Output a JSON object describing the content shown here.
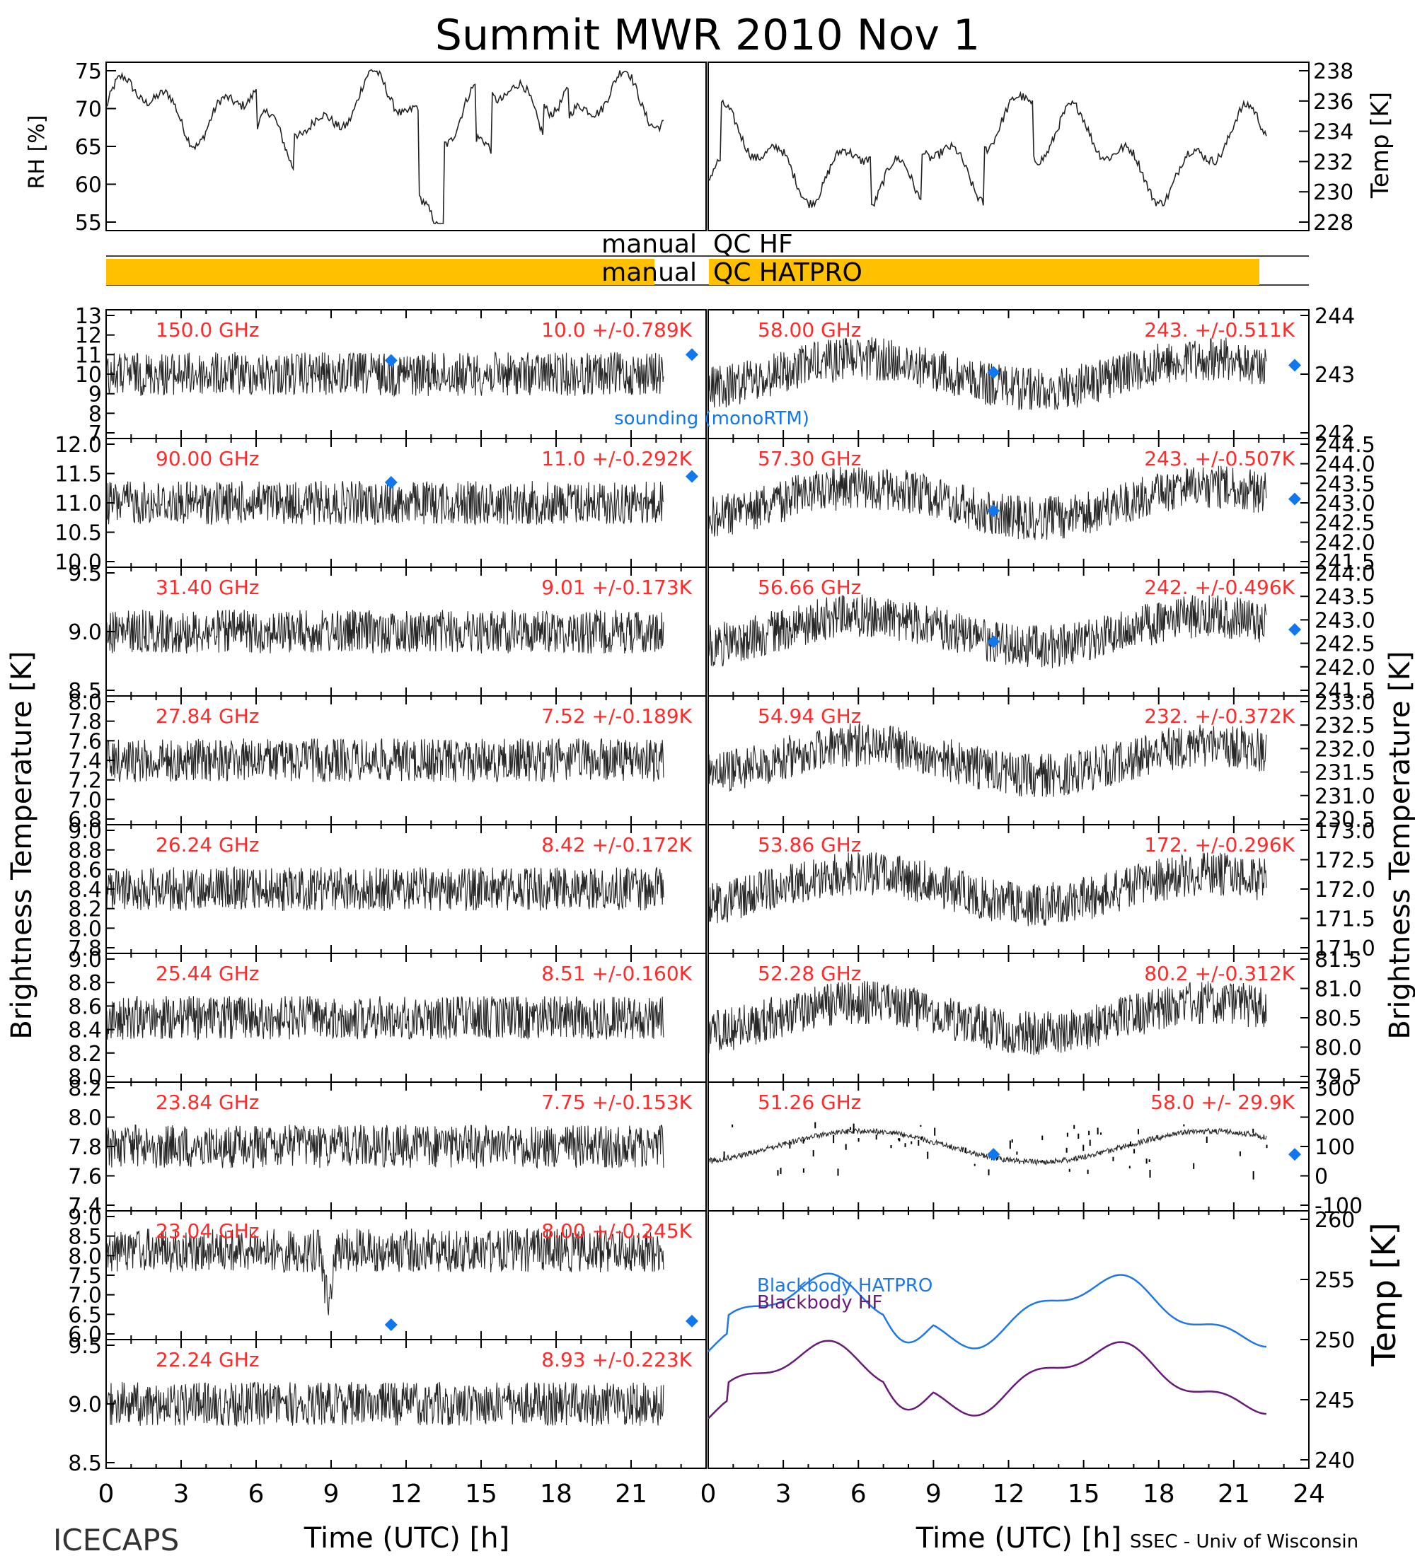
{
  "title": "Summit MWR 2010 Nov  1",
  "footer": {
    "left": "ICECAPS",
    "right": "SSEC - Univ of Wisconsin"
  },
  "colors": {
    "qc_bar": "#FFC000",
    "value_text": "#FF2A2A",
    "sounding": "#1177EE",
    "hatpro": "#1E78E6",
    "hf": "#6A1B7A",
    "trace": "#000000"
  },
  "axes": {
    "x_label": "Time (UTC) [h]",
    "x_ticks": [
      "0",
      "3",
      "6",
      "9",
      "12",
      "15",
      "18",
      "21"
    ],
    "x_ticks_right": [
      "0",
      "3",
      "6",
      "9",
      "12",
      "15",
      "18",
      "21",
      "24"
    ],
    "left_ylabel": "Brightness Temperature [K]",
    "right_ylabel": "Brightness Temperature [K]"
  },
  "met": {
    "rh_label": "RH [%]",
    "temp_label": "Temp [K]",
    "rh_ticks": [
      "75",
      "70",
      "65",
      "60",
      "55"
    ],
    "temp_ticks": [
      "238",
      "236",
      "234",
      "232",
      "230",
      "228"
    ]
  },
  "qc": {
    "hf_label_left": "manual",
    "hf_label_right": "QC HF",
    "hatpro_label_left": "manual",
    "hatpro_label_right": "QC HATPRO"
  },
  "sounding_label": "sounding (monoRTM)",
  "legend": {
    "hatpro": "Blackbody HATPRO",
    "hf": "Blackbody HF",
    "temp_axis_label": "Temp [K]",
    "ticks": [
      "260",
      "255",
      "250",
      "245",
      "240"
    ]
  },
  "chart_data": [
    {
      "type": "line",
      "panel": "left",
      "name": "150.0 GHz",
      "stat": "10.0 +/-0.789K",
      "yticks": [
        "13",
        "12",
        "11",
        "10",
        "9",
        "8",
        "7"
      ],
      "ylim": [
        7,
        13
      ],
      "sounding": [
        [
          11.4,
          10.7
        ],
        [
          23.5,
          11.0
        ]
      ]
    },
    {
      "type": "line",
      "panel": "left",
      "name": "90.00 GHz",
      "stat": "11.0 +/-0.292K",
      "yticks": [
        "12.0",
        "11.5",
        "11.0",
        "10.5",
        "10.0"
      ],
      "ylim": [
        10.0,
        12.0
      ],
      "sounding": [
        [
          11.4,
          11.35
        ],
        [
          23.5,
          11.45
        ]
      ]
    },
    {
      "type": "line",
      "panel": "left",
      "name": "31.40 GHz",
      "stat": "9.01 +/-0.173K",
      "yticks": [
        "9.5",
        "9.0",
        "8.5"
      ],
      "ylim": [
        8.4,
        9.7
      ],
      "sounding": []
    },
    {
      "type": "line",
      "panel": "left",
      "name": "27.84 GHz",
      "stat": "7.52 +/-0.189K",
      "yticks": [
        "8.0",
        "7.8",
        "7.6",
        "7.4",
        "7.2",
        "7.0",
        "6.8"
      ],
      "ylim": [
        6.8,
        8.1
      ],
      "sounding": []
    },
    {
      "type": "line",
      "panel": "left",
      "name": "26.24 GHz",
      "stat": "8.42 +/-0.172K",
      "yticks": [
        "9.0",
        "8.8",
        "8.6",
        "8.4",
        "8.2",
        "8.0",
        "7.8"
      ],
      "ylim": [
        7.8,
        9.0
      ],
      "sounding": []
    },
    {
      "type": "line",
      "panel": "left",
      "name": "25.44 GHz",
      "stat": "8.51 +/-0.160K",
      "yticks": [
        "9.0",
        "8.8",
        "8.6",
        "8.4",
        "8.2",
        "8.0"
      ],
      "ylim": [
        8.0,
        9.0
      ],
      "sounding": []
    },
    {
      "type": "line",
      "panel": "left",
      "name": "23.84 GHz",
      "stat": "7.75 +/-0.153K",
      "yticks": [
        "8.2",
        "8.0",
        "7.8",
        "7.6",
        "7.4"
      ],
      "ylim": [
        7.3,
        8.3
      ],
      "sounding": []
    },
    {
      "type": "line",
      "panel": "left",
      "name": "23.04 GHz",
      "stat": "8.00 +/-0.245K",
      "yticks": [
        "9.0",
        "8.5",
        "8.0",
        "7.5",
        "7.0",
        "6.5",
        "6.0"
      ],
      "ylim": [
        5.8,
        9.0
      ],
      "sounding": [
        [
          11.4,
          6.05
        ],
        [
          23.5,
          6.15
        ]
      ]
    },
    {
      "type": "line",
      "panel": "left",
      "name": "22.24 GHz",
      "stat": "8.93 +/-0.223K",
      "yticks": [
        "9.5",
        "9.0",
        "8.5"
      ],
      "ylim": [
        8.1,
        9.7
      ],
      "sounding": []
    },
    {
      "type": "line",
      "panel": "right",
      "name": "58.00 GHz",
      "stat": "243. +/-0.511K",
      "yticks": [
        "244",
        "243",
        "242"
      ],
      "ylim": [
        241.3,
        244.6
      ],
      "sounding": [
        [
          11.4,
          243.0
        ],
        [
          23.5,
          243.2
        ]
      ]
    },
    {
      "type": "line",
      "panel": "right",
      "name": "57.30 GHz",
      "stat": "243. +/-0.507K",
      "yticks": [
        "244.5",
        "244.0",
        "243.5",
        "243.0",
        "242.5",
        "242.0",
        "241.5"
      ],
      "ylim": [
        241.5,
        244.5
      ],
      "sounding": [
        [
          11.4,
          242.8
        ],
        [
          23.5,
          243.1
        ]
      ]
    },
    {
      "type": "line",
      "panel": "right",
      "name": "56.66 GHz",
      "stat": "242. +/-0.496K",
      "yticks": [
        "244.0",
        "243.5",
        "243.0",
        "242.5",
        "242.0",
        "241.5"
      ],
      "ylim": [
        241.3,
        244.2
      ],
      "sounding": [
        [
          11.4,
          242.5
        ],
        [
          23.5,
          242.8
        ]
      ]
    },
    {
      "type": "line",
      "panel": "right",
      "name": "54.94 GHz",
      "stat": "232. +/-0.372K",
      "yticks": [
        "233.0",
        "232.5",
        "232.0",
        "231.5",
        "231.0",
        "230.5"
      ],
      "ylim": [
        230.4,
        233.3
      ],
      "sounding": []
    },
    {
      "type": "line",
      "panel": "right",
      "name": "53.86 GHz",
      "stat": "172. +/-0.296K",
      "yticks": [
        "173.0",
        "172.5",
        "172.0",
        "171.5",
        "171.0"
      ],
      "ylim": [
        170.9,
        173.2
      ],
      "sounding": []
    },
    {
      "type": "line",
      "panel": "right",
      "name": "52.28 GHz",
      "stat": "80.2 +/-0.312K",
      "yticks": [
        "81.5",
        "81.0",
        "80.5",
        "80.0",
        "79.5"
      ],
      "ylim": [
        79.3,
        81.7
      ],
      "sounding": []
    },
    {
      "type": "line",
      "panel": "right",
      "name": "51.26 GHz",
      "stat": "58.0 +/- 29.9K",
      "yticks": [
        "300",
        "200",
        "100",
        "0",
        "-100"
      ],
      "ylim": [
        -150,
        330
      ],
      "sounding": [
        [
          11.4,
          58
        ],
        [
          23.5,
          58
        ]
      ]
    }
  ]
}
